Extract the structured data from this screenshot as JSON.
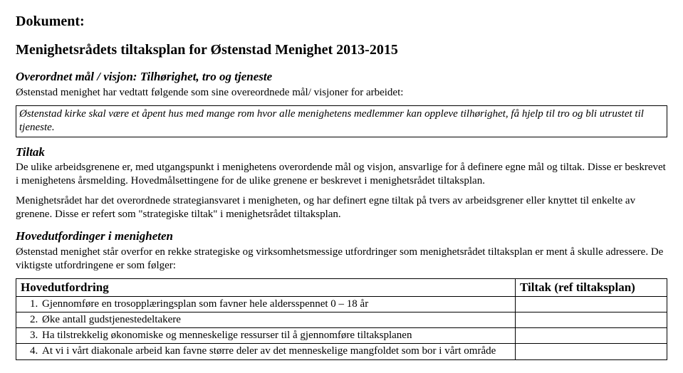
{
  "doc_label": "Dokument:",
  "doc_title": "Menighetsrådets tiltaksplan for Østenstad Menighet 2013-2015",
  "vision_heading": "Overordnet mål / visjon: Tilhørighet, tro og tjeneste",
  "vision_intro": "Østenstad menighet har vedtatt følgende som sine overeordnede mål/ visjoner for arbeidet:",
  "vision_box": "Østenstad kirke skal være et åpent hus med mange rom hvor alle menighetens medlemmer kan oppleve tilhørighet, få hjelp til tro og bli utrustet til tjeneste.",
  "tiltak_heading": "Tiltak",
  "tiltak_p1": "De ulike arbeidsgrenene er, med utgangspunkt i menighetens overordende mål og visjon, ansvarlige for å definere egne mål og tiltak. Disse er beskrevet i menighetens årsmelding. Hovedmålsettingene for de ulike grenene er beskrevet i menighetsrådet tiltaksplan.",
  "tiltak_p2": "Menighetsrådet har det overordnede strategiansvaret i menigheten, og har definert egne tiltak på tvers av arbeidsgrener eller knyttet til enkelte av grenene. Disse er refert som \"strategiske tiltak\" i menighetsrådet tiltaksplan.",
  "challenges_heading": "Hovedutfordinger i menigheten",
  "challenges_intro": "Østenstad menighet står overfor en rekke strategiske og virksomhetsmessige utfordringer som menighetsrådet tiltaksplan er ment å skulle adressere. De viktigste utfordringene er som følger:",
  "table": {
    "header_left": "Hovedutfordring",
    "header_right": "Tiltak (ref tiltaksplan)",
    "rows": [
      "Gjennomføre en trosopplæringsplan som favner hele aldersspennet 0 – 18 år",
      "Øke antall gudstjenestedeltakere",
      "Ha tilstrekkelig økonomiske og menneskelige ressurser til å gjennomføre tiltaksplanen",
      "At vi i vårt diakonale arbeid kan favne større deler av det menneskelige mangfoldet som bor i vårt område"
    ]
  }
}
